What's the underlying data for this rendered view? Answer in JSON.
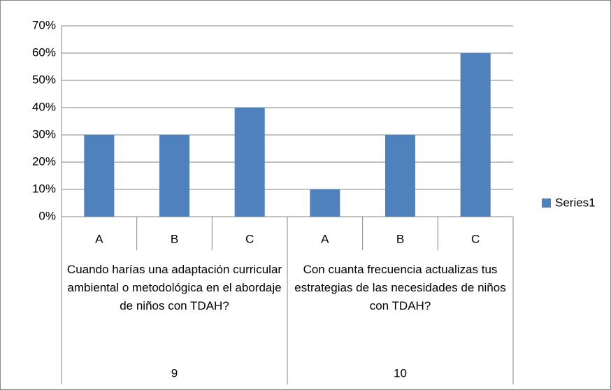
{
  "chart_data": {
    "type": "bar",
    "categories": [
      "A",
      "B",
      "C",
      "A",
      "B",
      "C"
    ],
    "groups": [
      {
        "label": "Cuando harías una adaptación curricular ambiental o metodológica en el abordaje de niños con TDAH?",
        "number": "9"
      },
      {
        "label": "Con cuanta frecuencia actualizas tus estrategias de las necesidades de niños con TDAH?",
        "number": "10"
      }
    ],
    "series": [
      {
        "name": "Series1",
        "color": "#4f81bd",
        "values": [
          30,
          30,
          40,
          10,
          30,
          60
        ]
      }
    ],
    "ylim": [
      0,
      70
    ],
    "yticks": [
      {
        "value": 0,
        "label": "0%"
      },
      {
        "value": 10,
        "label": "10%"
      },
      {
        "value": 20,
        "label": "20%"
      },
      {
        "value": 30,
        "label": "30%"
      },
      {
        "value": 40,
        "label": "40%"
      },
      {
        "value": 50,
        "label": "50%"
      },
      {
        "value": 60,
        "label": "60%"
      },
      {
        "value": 70,
        "label": "70%"
      }
    ],
    "grid": true,
    "legend": "right"
  }
}
